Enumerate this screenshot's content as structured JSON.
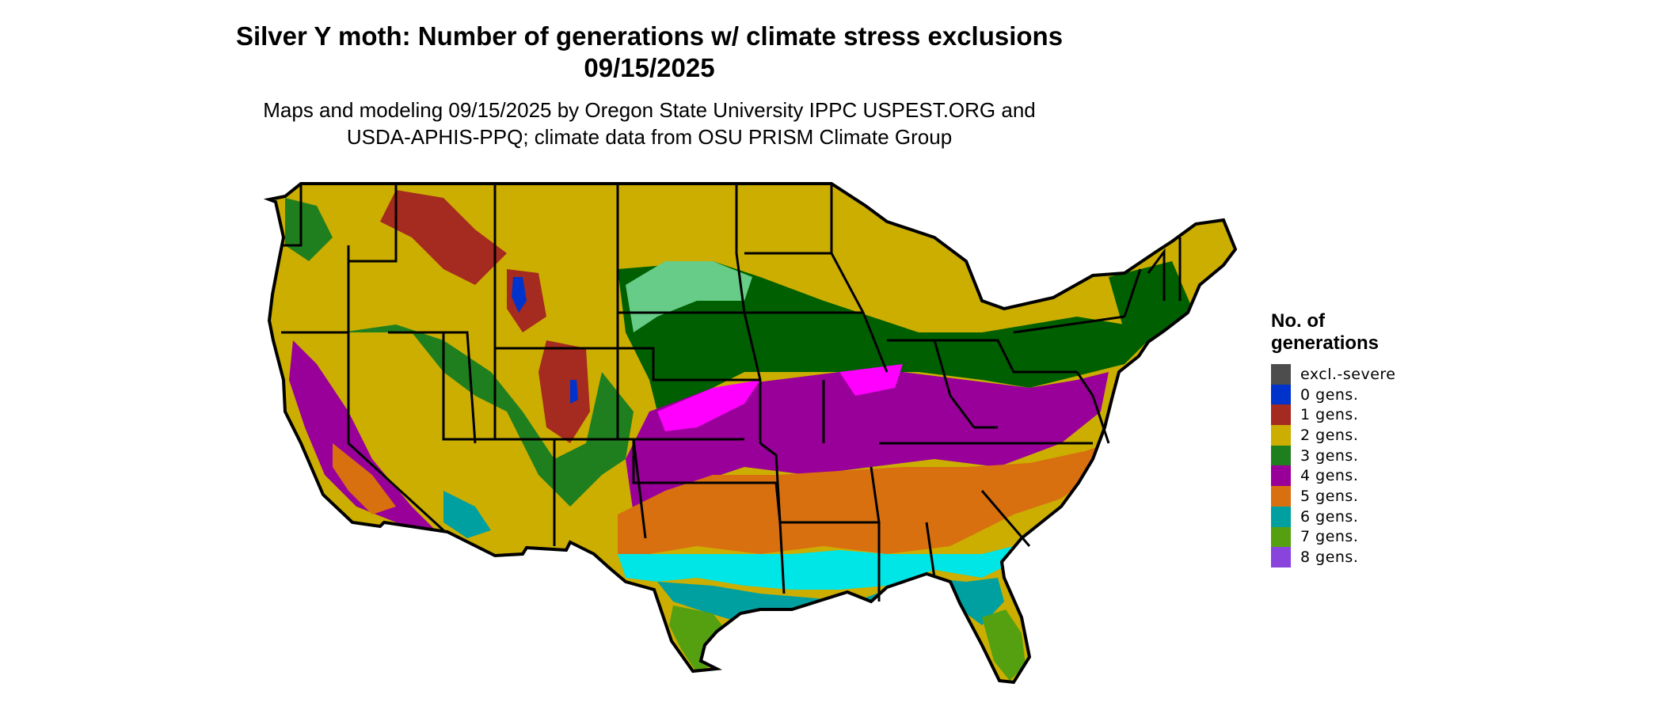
{
  "title_line1": "Silver Y moth: Number of generations w/ climate stress exclusions",
  "title_line2": "09/15/2025",
  "subtitle_line1": "Maps and modeling 09/15/2025 by Oregon State University IPPC USPEST.ORG and",
  "subtitle_line2": "USDA-APHIS-PPQ; climate data from OSU PRISM Climate Group",
  "legend": {
    "title_line1": "No. of",
    "title_line2": "generations",
    "items": [
      {
        "label": "excl.-severe",
        "color": "#4d4d4d"
      },
      {
        "label": "0 gens.",
        "color": "#0033cc"
      },
      {
        "label": "1 gens.",
        "color": "#a52a1f"
      },
      {
        "label": "2 gens.",
        "color": "#ccae00"
      },
      {
        "label": "3 gens.",
        "color": "#1f7f1f"
      },
      {
        "label": "4 gens.",
        "color": "#990099"
      },
      {
        "label": "5 gens.",
        "color": "#d87010"
      },
      {
        "label": "6 gens.",
        "color": "#00a0a0"
      },
      {
        "label": "7 gens.",
        "color": "#55a010"
      },
      {
        "label": "8 gens.",
        "color": "#8844dd"
      }
    ]
  },
  "map_colors": {
    "deep_green": "#005f00",
    "light_green": "#66cc88",
    "magenta": "#ff00ff",
    "cyan": "#00e5e5",
    "border": "#000000"
  }
}
